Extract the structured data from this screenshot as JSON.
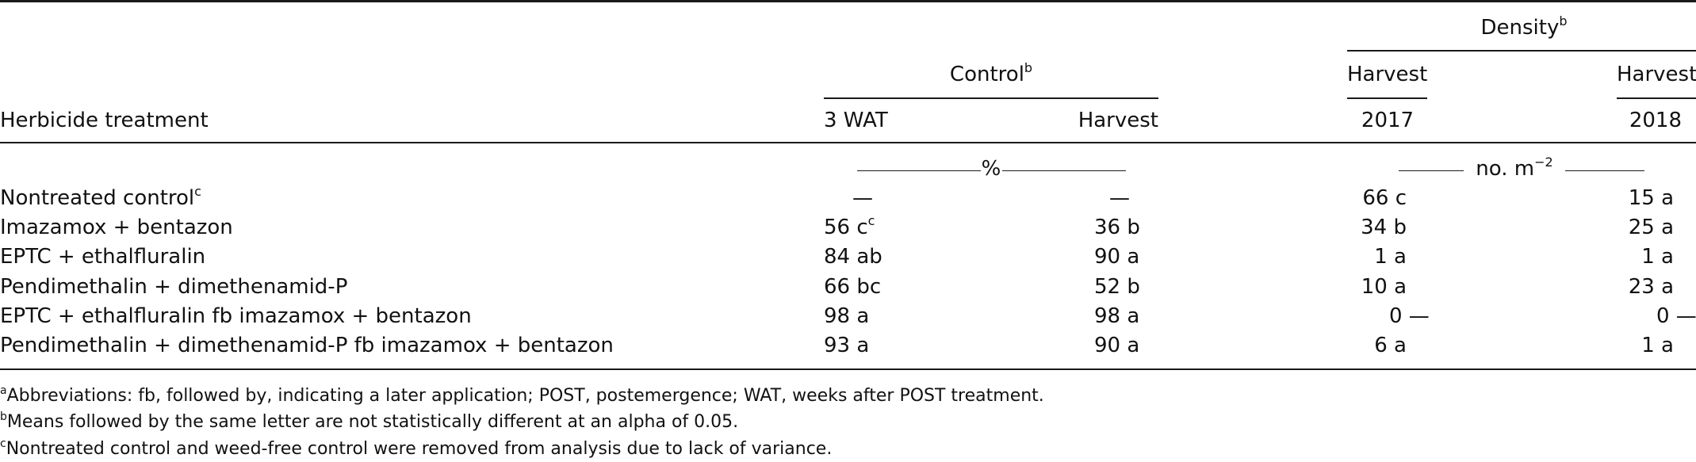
{
  "table": {
    "header": {
      "treatment_label": "Herbicide treatment",
      "control_label": "Control",
      "control_sup": "b",
      "density_label": "Density",
      "density_sup": "b",
      "control_subheads": [
        "3 WAT",
        "Harvest"
      ],
      "density_subheads": [
        "Harvest",
        "Harvest"
      ],
      "density_years": [
        "2017",
        "2018"
      ],
      "unit_percent": "%",
      "unit_density": "no. m",
      "unit_density_sup": "−2"
    },
    "rows": [
      {
        "treatment": "Nontreated control",
        "treatment_sup": "c",
        "wat3": "—",
        "wat3_sup": "",
        "harvest": "—",
        "d2017": "66 c",
        "d2018": "15 a"
      },
      {
        "treatment": "Imazamox + bentazon",
        "treatment_sup": "",
        "wat3": "56 c",
        "wat3_sup": "c",
        "harvest": "36 b",
        "d2017": "34 b",
        "d2018": "25 a"
      },
      {
        "treatment": "EPTC + ethalfluralin",
        "treatment_sup": "",
        "wat3": "84 ab",
        "wat3_sup": "",
        "harvest": "90 a",
        "d2017": "1 a",
        "d2018": "1 a"
      },
      {
        "treatment": "Pendimethalin + dimethenamid-P",
        "treatment_sup": "",
        "wat3": "66 bc",
        "wat3_sup": "",
        "harvest": "52 b",
        "d2017": "10 a",
        "d2018": "23 a"
      },
      {
        "treatment": "EPTC + ethalfluralin fb imazamox + bentazon",
        "treatment_sup": "",
        "wat3": "98 a",
        "wat3_sup": "",
        "harvest": "98 a",
        "d2017": "0 —",
        "d2018": "0 —"
      },
      {
        "treatment": "Pendimethalin + dimethenamid-P fb imazamox + bentazon",
        "treatment_sup": "",
        "wat3": "93 a",
        "wat3_sup": "",
        "harvest": "90 a",
        "d2017": "6 a",
        "d2018": "1 a"
      }
    ]
  },
  "footnotes": [
    {
      "mark": "a",
      "text": "Abbreviations: fb, followed by, indicating a later application; POST, postemergence; WAT, weeks after POST treatment."
    },
    {
      "mark": "b",
      "text": "Means followed by the same letter are not statistically different at an alpha of 0.05."
    },
    {
      "mark": "c",
      "text": "Nontreated control and weed-free control were removed from analysis due to lack of variance."
    }
  ]
}
